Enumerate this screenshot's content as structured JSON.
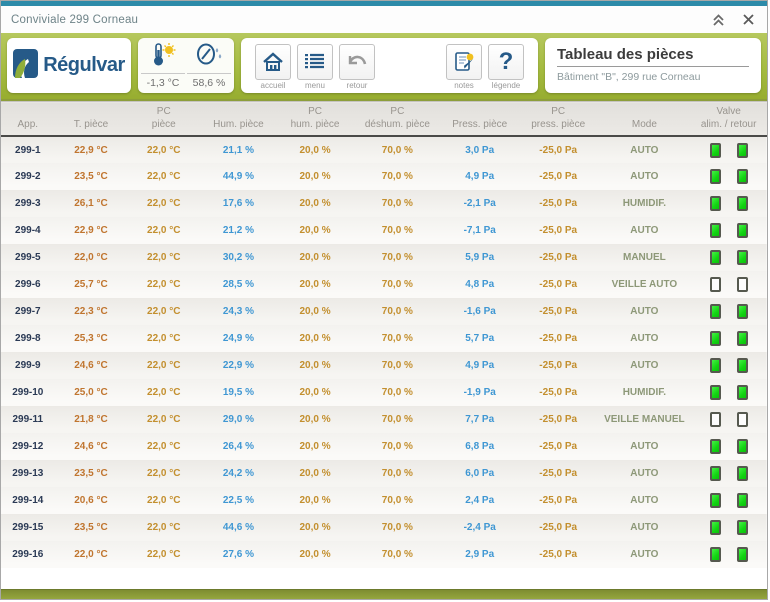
{
  "window": {
    "title": "Conviviale 299 Corneau",
    "controls": {
      "collapse": "collapse-window",
      "close": "close-window"
    }
  },
  "header": {
    "logo_text": "Régulvar",
    "outdoor": {
      "temperature": "-1,3 °C",
      "humidity": "58,6 %"
    },
    "nav": {
      "accueil": "accueil",
      "menu": "menu",
      "retour": "retour",
      "notes": "notes",
      "legende": "légende"
    },
    "panel": {
      "title": "Tableau des pièces",
      "subtitle": "Bâtiment \"B\", 299 rue Corneau"
    }
  },
  "colors": {
    "band_green": "#a5bb40",
    "top_teal": "#2d8ba9",
    "valve_on_green": "#12d412",
    "value_blue": "#3f97d3",
    "value_orange": "#c0752f",
    "value_gold": "#c38f2e",
    "app_navy": "#2b3a55",
    "mode_olive": "#8d9878"
  },
  "table": {
    "columns": [
      {
        "line1": "",
        "line2": "App."
      },
      {
        "line1": "",
        "line2": "T. pièce"
      },
      {
        "line1": "PC",
        "line2": "pièce"
      },
      {
        "line1": "",
        "line2": "Hum. pièce"
      },
      {
        "line1": "PC",
        "line2": "hum. pièce"
      },
      {
        "line1": "PC",
        "line2": "déshum. pièce"
      },
      {
        "line1": "",
        "line2": "Press. pièce"
      },
      {
        "line1": "PC",
        "line2": "press. pièce"
      },
      {
        "line1": "",
        "line2": "Mode"
      },
      {
        "line1": "Valve",
        "line2": "alim. / retour"
      }
    ],
    "rows": [
      {
        "app": "299-1",
        "t_piece": "22,9 °C",
        "pc_piece": "22,0 °C",
        "hum": "21,1 %",
        "pc_hum": "20,0 %",
        "pc_deshum": "70,0 %",
        "press": "3,0 Pa",
        "pc_press": "-25,0 Pa",
        "mode": "AUTO",
        "valve_alim": "on",
        "valve_retour": "on"
      },
      {
        "app": "299-2",
        "t_piece": "23,5 °C",
        "pc_piece": "22,0 °C",
        "hum": "44,9 %",
        "pc_hum": "20,0 %",
        "pc_deshum": "70,0 %",
        "press": "4,9 Pa",
        "pc_press": "-25,0 Pa",
        "mode": "AUTO",
        "valve_alim": "on",
        "valve_retour": "on"
      },
      {
        "app": "299-3",
        "t_piece": "26,1 °C",
        "pc_piece": "22,0 °C",
        "hum": "17,6 %",
        "pc_hum": "20,0 %",
        "pc_deshum": "70,0 %",
        "press": "-2,1 Pa",
        "pc_press": "-25,0 Pa",
        "mode": "HUMIDIF.",
        "valve_alim": "on",
        "valve_retour": "on"
      },
      {
        "app": "299-4",
        "t_piece": "22,9 °C",
        "pc_piece": "22,0 °C",
        "hum": "21,2 %",
        "pc_hum": "20,0 %",
        "pc_deshum": "70,0 %",
        "press": "-7,1 Pa",
        "pc_press": "-25,0 Pa",
        "mode": "AUTO",
        "valve_alim": "on",
        "valve_retour": "on"
      },
      {
        "app": "299-5",
        "t_piece": "22,0 °C",
        "pc_piece": "22,0 °C",
        "hum": "30,2 %",
        "pc_hum": "20,0 %",
        "pc_deshum": "70,0 %",
        "press": "5,9 Pa",
        "pc_press": "-25,0 Pa",
        "mode": "MANUEL",
        "valve_alim": "on",
        "valve_retour": "on"
      },
      {
        "app": "299-6",
        "t_piece": "25,7 °C",
        "pc_piece": "22,0 °C",
        "hum": "28,5 %",
        "pc_hum": "20,0 %",
        "pc_deshum": "70,0 %",
        "press": "4,8 Pa",
        "pc_press": "-25,0 Pa",
        "mode": "VEILLE AUTO",
        "valve_alim": "off",
        "valve_retour": "off"
      },
      {
        "app": "299-7",
        "t_piece": "22,3 °C",
        "pc_piece": "22,0 °C",
        "hum": "24,3 %",
        "pc_hum": "20,0 %",
        "pc_deshum": "70,0 %",
        "press": "-1,6 Pa",
        "pc_press": "-25,0 Pa",
        "mode": "AUTO",
        "valve_alim": "on",
        "valve_retour": "on"
      },
      {
        "app": "299-8",
        "t_piece": "25,3 °C",
        "pc_piece": "22,0 °C",
        "hum": "24,9 %",
        "pc_hum": "20,0 %",
        "pc_deshum": "70,0 %",
        "press": "5,7 Pa",
        "pc_press": "-25,0 Pa",
        "mode": "AUTO",
        "valve_alim": "on",
        "valve_retour": "on"
      },
      {
        "app": "299-9",
        "t_piece": "24,6 °C",
        "pc_piece": "22,0 °C",
        "hum": "22,9 %",
        "pc_hum": "20,0 %",
        "pc_deshum": "70,0 %",
        "press": "4,9 Pa",
        "pc_press": "-25,0 Pa",
        "mode": "AUTO",
        "valve_alim": "on",
        "valve_retour": "on"
      },
      {
        "app": "299-10",
        "t_piece": "25,0 °C",
        "pc_piece": "22,0 °C",
        "hum": "19,5 %",
        "pc_hum": "20,0 %",
        "pc_deshum": "70,0 %",
        "press": "-1,9 Pa",
        "pc_press": "-25,0 Pa",
        "mode": "HUMIDIF.",
        "valve_alim": "on",
        "valve_retour": "on"
      },
      {
        "app": "299-11",
        "t_piece": "21,8 °C",
        "pc_piece": "22,0 °C",
        "hum": "29,0 %",
        "pc_hum": "20,0 %",
        "pc_deshum": "70,0 %",
        "press": "7,7 Pa",
        "pc_press": "-25,0 Pa",
        "mode": "VEILLE MANUEL",
        "valve_alim": "off",
        "valve_retour": "off"
      },
      {
        "app": "299-12",
        "t_piece": "24,6 °C",
        "pc_piece": "22,0 °C",
        "hum": "26,4 %",
        "pc_hum": "20,0 %",
        "pc_deshum": "70,0 %",
        "press": "6,8 Pa",
        "pc_press": "-25,0 Pa",
        "mode": "AUTO",
        "valve_alim": "on",
        "valve_retour": "on"
      },
      {
        "app": "299-13",
        "t_piece": "23,5 °C",
        "pc_piece": "22,0 °C",
        "hum": "24,2 %",
        "pc_hum": "20,0 %",
        "pc_deshum": "70,0 %",
        "press": "6,0 Pa",
        "pc_press": "-25,0 Pa",
        "mode": "AUTO",
        "valve_alim": "on",
        "valve_retour": "on"
      },
      {
        "app": "299-14",
        "t_piece": "20,6 °C",
        "pc_piece": "22,0 °C",
        "hum": "22,5 %",
        "pc_hum": "20,0 %",
        "pc_deshum": "70,0 %",
        "press": "2,4 Pa",
        "pc_press": "-25,0 Pa",
        "mode": "AUTO",
        "valve_alim": "on",
        "valve_retour": "on"
      },
      {
        "app": "299-15",
        "t_piece": "23,5 °C",
        "pc_piece": "22,0 °C",
        "hum": "44,6 %",
        "pc_hum": "20,0 %",
        "pc_deshum": "70,0 %",
        "press": "-2,4 Pa",
        "pc_press": "-25,0 Pa",
        "mode": "AUTO",
        "valve_alim": "on",
        "valve_retour": "on"
      },
      {
        "app": "299-16",
        "t_piece": "22,0 °C",
        "pc_piece": "22,0 °C",
        "hum": "27,6 %",
        "pc_hum": "20,0 %",
        "pc_deshum": "70,0 %",
        "press": "2,9 Pa",
        "pc_press": "-25,0 Pa",
        "mode": "AUTO",
        "valve_alim": "on",
        "valve_retour": "on"
      }
    ]
  }
}
